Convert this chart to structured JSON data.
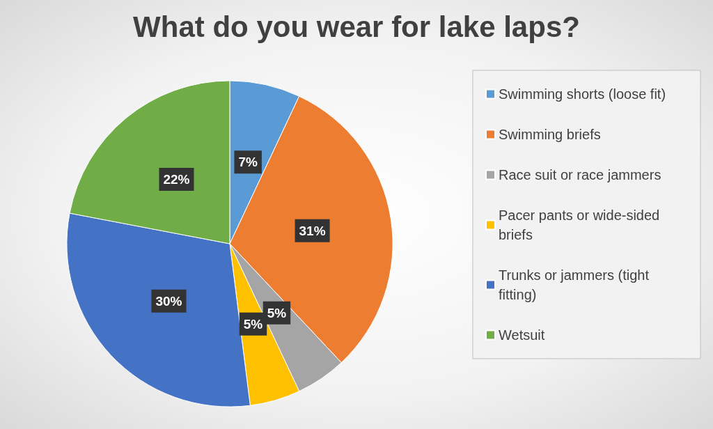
{
  "chart_data": {
    "type": "pie",
    "title": "What do you wear for lake laps?",
    "categories": [
      "Swimming shorts (loose fit)",
      "Swimming briefs",
      "Race suit or race jammers",
      "Pacer pants or wide-sided briefs",
      "Trunks or jammers (tight fitting)",
      "Wetsuit"
    ],
    "values": [
      7,
      31,
      5,
      5,
      30,
      22
    ],
    "colors": [
      "#5b9bd5",
      "#ed7d31",
      "#a5a5a5",
      "#ffc000",
      "#4472c4",
      "#70ad47"
    ],
    "value_labels": [
      "7%",
      "31%",
      "5%",
      "5%",
      "30%",
      "22%"
    ],
    "legend": "right"
  }
}
